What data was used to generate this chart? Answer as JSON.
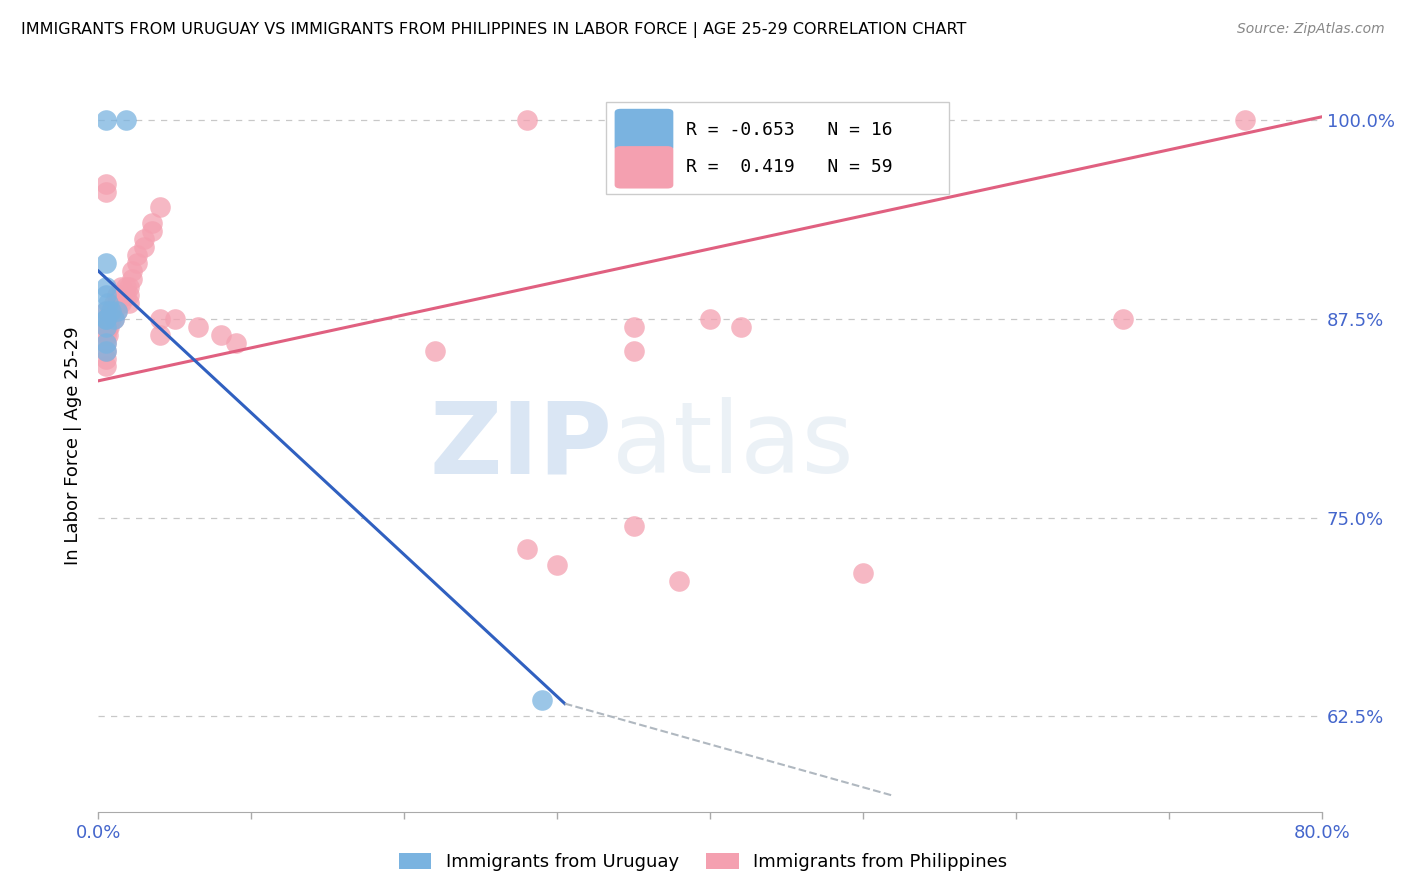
{
  "title": "IMMIGRANTS FROM URUGUAY VS IMMIGRANTS FROM PHILIPPINES IN LABOR FORCE | AGE 25-29 CORRELATION CHART",
  "source": "Source: ZipAtlas.com",
  "ylabel": "In Labor Force | Age 25-29",
  "ytick_labels": [
    "100.0%",
    "87.5%",
    "75.0%",
    "62.5%"
  ],
  "ytick_values": [
    1.0,
    0.875,
    0.75,
    0.625
  ],
  "xlim": [
    0.0,
    0.8
  ],
  "ylim": [
    0.565,
    1.025
  ],
  "xtick_positions": [
    0.0,
    0.1,
    0.2,
    0.3,
    0.4,
    0.5,
    0.6,
    0.7,
    0.8
  ],
  "xtick_labels": [
    "0.0%",
    "",
    "",
    "",
    "",
    "",
    "",
    "",
    "80.0%"
  ],
  "legend_uruguay_text": "R = -0.653   N = 16",
  "legend_philippines_text": "R =  0.419   N = 59",
  "legend_bottom_uruguay": "Immigrants from Uruguay",
  "legend_bottom_philippines": "Immigrants from Philippines",
  "uruguay_color": "#7ab3e0",
  "philippines_color": "#f4a0b0",
  "trend_uruguay_color": "#3060c0",
  "trend_philippines_color": "#e06080",
  "trend_dashed_color": "#b0b8c0",
  "background_color": "#ffffff",
  "grid_color": "#c8c8c8",
  "tick_label_color": "#4466cc",
  "watermark_zip": "ZIP",
  "watermark_atlas": "atlas",
  "uruguay_points": [
    [
      0.005,
      1.0
    ],
    [
      0.018,
      1.0
    ],
    [
      0.005,
      0.91
    ],
    [
      0.005,
      0.895
    ],
    [
      0.005,
      0.89
    ],
    [
      0.006,
      0.885
    ],
    [
      0.005,
      0.88
    ],
    [
      0.008,
      0.88
    ],
    [
      0.012,
      0.88
    ],
    [
      0.005,
      0.875
    ],
    [
      0.005,
      0.875
    ],
    [
      0.01,
      0.875
    ],
    [
      0.005,
      0.87
    ],
    [
      0.005,
      0.86
    ],
    [
      0.005,
      0.855
    ],
    [
      0.29,
      0.635
    ]
  ],
  "philippines_points": [
    [
      0.28,
      1.0
    ],
    [
      0.005,
      0.96
    ],
    [
      0.005,
      0.955
    ],
    [
      0.04,
      0.945
    ],
    [
      0.035,
      0.935
    ],
    [
      0.035,
      0.93
    ],
    [
      0.03,
      0.925
    ],
    [
      0.03,
      0.92
    ],
    [
      0.025,
      0.915
    ],
    [
      0.025,
      0.91
    ],
    [
      0.022,
      0.905
    ],
    [
      0.022,
      0.9
    ],
    [
      0.02,
      0.895
    ],
    [
      0.02,
      0.89
    ],
    [
      0.02,
      0.885
    ],
    [
      0.018,
      0.895
    ],
    [
      0.018,
      0.89
    ],
    [
      0.015,
      0.895
    ],
    [
      0.015,
      0.89
    ],
    [
      0.015,
      0.885
    ],
    [
      0.012,
      0.89
    ],
    [
      0.012,
      0.885
    ],
    [
      0.012,
      0.88
    ],
    [
      0.01,
      0.885
    ],
    [
      0.01,
      0.88
    ],
    [
      0.01,
      0.875
    ],
    [
      0.008,
      0.88
    ],
    [
      0.008,
      0.875
    ],
    [
      0.007,
      0.875
    ],
    [
      0.007,
      0.87
    ],
    [
      0.006,
      0.875
    ],
    [
      0.006,
      0.87
    ],
    [
      0.006,
      0.865
    ],
    [
      0.005,
      0.88
    ],
    [
      0.005,
      0.875
    ],
    [
      0.005,
      0.87
    ],
    [
      0.005,
      0.865
    ],
    [
      0.005,
      0.86
    ],
    [
      0.005,
      0.855
    ],
    [
      0.005,
      0.85
    ],
    [
      0.005,
      0.845
    ],
    [
      0.04,
      0.875
    ],
    [
      0.04,
      0.865
    ],
    [
      0.05,
      0.875
    ],
    [
      0.065,
      0.87
    ],
    [
      0.08,
      0.865
    ],
    [
      0.09,
      0.86
    ],
    [
      0.22,
      0.855
    ],
    [
      0.35,
      0.87
    ],
    [
      0.35,
      0.855
    ],
    [
      0.4,
      0.875
    ],
    [
      0.42,
      0.87
    ],
    [
      0.35,
      0.745
    ],
    [
      0.28,
      0.73
    ],
    [
      0.3,
      0.72
    ],
    [
      0.38,
      0.71
    ],
    [
      0.5,
      0.715
    ],
    [
      0.67,
      0.875
    ],
    [
      0.75,
      1.0
    ]
  ],
  "trend_philippines_x0": 0.0,
  "trend_philippines_y0": 0.836,
  "trend_philippines_x1": 0.8,
  "trend_philippines_y1": 1.002,
  "trend_uruguay_solid_x0": 0.0,
  "trend_uruguay_solid_y0": 0.905,
  "trend_uruguay_solid_x1": 0.305,
  "trend_uruguay_solid_y1": 0.633,
  "trend_uruguay_dashed_x0": 0.305,
  "trend_uruguay_dashed_y0": 0.633,
  "trend_uruguay_dashed_x1": 0.52,
  "trend_uruguay_dashed_y1": 0.575
}
